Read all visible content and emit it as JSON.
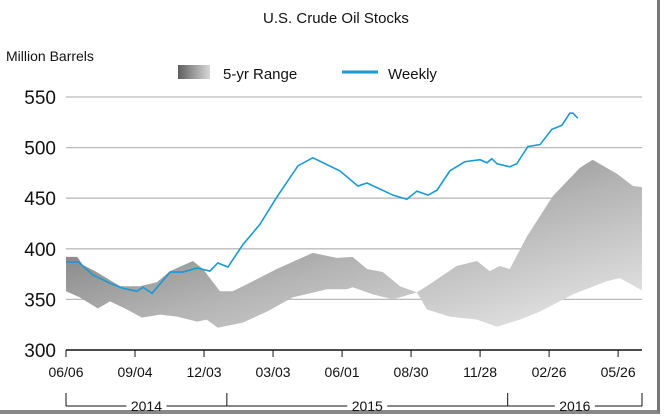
{
  "chart_data": {
    "type": "area",
    "title": "U.S. Crude Oil Stocks",
    "ylabel": "Million Barrels",
    "xlabel": "",
    "x_unit": "weeks since 06/06/2014",
    "xlim": [
      0,
      108.5
    ],
    "ylim": [
      300,
      550
    ],
    "yticks": [
      300,
      350,
      400,
      450,
      500,
      550
    ],
    "grid": "horizontal",
    "legend_placement": "top-center",
    "xticks": [
      {
        "week": 0,
        "label": "06/06"
      },
      {
        "week": 13,
        "label": "09/04"
      },
      {
        "week": 26,
        "label": "12/03"
      },
      {
        "week": 39,
        "label": "03/03"
      },
      {
        "week": 52,
        "label": "06/01"
      },
      {
        "week": 65,
        "label": "08/30"
      },
      {
        "week": 78,
        "label": "11/28"
      },
      {
        "week": 91,
        "label": "02/26"
      },
      {
        "week": 104,
        "label": "05/26"
      }
    ],
    "years": [
      {
        "label": "2014",
        "start": 0,
        "end": 30.3
      },
      {
        "label": "2015",
        "start": 30.3,
        "end": 83.2
      },
      {
        "label": "2016",
        "start": 83.2,
        "end": 108.5
      }
    ],
    "series": [
      {
        "name": "5-yr Range",
        "kind": "band",
        "upper": [
          [
            0,
            392
          ],
          [
            2.1,
            392
          ],
          [
            3.2,
            384
          ],
          [
            5.8,
            377
          ],
          [
            10.2,
            363
          ],
          [
            13.9,
            363
          ],
          [
            17.1,
            367
          ],
          [
            19.6,
            378
          ],
          [
            23.9,
            388
          ],
          [
            25.8,
            380
          ],
          [
            29,
            358
          ],
          [
            31.4,
            358
          ],
          [
            34.1,
            365
          ],
          [
            39.7,
            380
          ],
          [
            46.5,
            396
          ],
          [
            51,
            391
          ],
          [
            54,
            392
          ],
          [
            56.7,
            380
          ],
          [
            59.7,
            377
          ],
          [
            62.9,
            363
          ],
          [
            66.1,
            357
          ],
          [
            68.5,
            365
          ],
          [
            73.6,
            383
          ],
          [
            77.4,
            388
          ],
          [
            79.8,
            378
          ],
          [
            81.7,
            383
          ],
          [
            83.6,
            380
          ],
          [
            86.8,
            412
          ],
          [
            91.7,
            452
          ],
          [
            96.8,
            480
          ],
          [
            99.2,
            488
          ],
          [
            103.8,
            474
          ],
          [
            106.8,
            462
          ],
          [
            108.5,
            461
          ]
        ],
        "lower": [
          [
            0,
            358
          ],
          [
            2.6,
            352
          ],
          [
            6,
            341
          ],
          [
            8.3,
            348
          ],
          [
            11.5,
            340
          ],
          [
            14.3,
            332
          ],
          [
            17.7,
            335
          ],
          [
            20.9,
            333
          ],
          [
            24.7,
            328
          ],
          [
            26.5,
            330
          ],
          [
            28.6,
            322
          ],
          [
            33.3,
            327
          ],
          [
            37.9,
            338
          ],
          [
            42.7,
            352
          ],
          [
            49.2,
            360
          ],
          [
            52.9,
            360
          ],
          [
            54,
            362
          ],
          [
            57.8,
            355
          ],
          [
            61.6,
            350
          ],
          [
            66.1,
            357
          ],
          [
            68,
            340
          ],
          [
            72.3,
            333
          ],
          [
            77.4,
            330
          ],
          [
            81.2,
            323
          ],
          [
            85.5,
            330
          ],
          [
            89.3,
            338
          ],
          [
            95.5,
            355
          ],
          [
            101.9,
            368
          ],
          [
            104.3,
            371
          ],
          [
            108.5,
            359
          ]
        ]
      },
      {
        "name": "Weekly",
        "kind": "line",
        "color": "#1a9ad0",
        "points": [
          [
            0,
            387
          ],
          [
            2.3,
            387
          ],
          [
            5.1,
            374
          ],
          [
            8.3,
            366
          ],
          [
            10.7,
            361
          ],
          [
            13.4,
            358
          ],
          [
            14.5,
            362
          ],
          [
            16.2,
            356
          ],
          [
            19.6,
            377
          ],
          [
            22,
            377
          ],
          [
            24.7,
            381
          ],
          [
            27.1,
            378
          ],
          [
            28.6,
            386
          ],
          [
            30.5,
            382
          ],
          [
            33.3,
            404
          ],
          [
            36.5,
            424
          ],
          [
            39.7,
            451
          ],
          [
            43.7,
            482
          ],
          [
            46.5,
            490
          ],
          [
            51.6,
            477
          ],
          [
            55,
            462
          ],
          [
            56.7,
            465
          ],
          [
            61.6,
            453
          ],
          [
            64.2,
            449
          ],
          [
            66.1,
            457
          ],
          [
            68.2,
            453
          ],
          [
            69.9,
            458
          ],
          [
            72.3,
            477
          ],
          [
            75.1,
            486
          ],
          [
            78,
            488
          ],
          [
            79.3,
            485
          ],
          [
            80.2,
            489
          ],
          [
            81.2,
            484
          ],
          [
            83.6,
            481
          ],
          [
            84.9,
            484
          ],
          [
            87,
            501
          ],
          [
            89.3,
            503
          ],
          [
            91.5,
            518
          ],
          [
            93.4,
            522
          ],
          [
            94.9,
            534
          ],
          [
            95.5,
            534
          ],
          [
            96.4,
            529
          ]
        ]
      }
    ]
  }
}
